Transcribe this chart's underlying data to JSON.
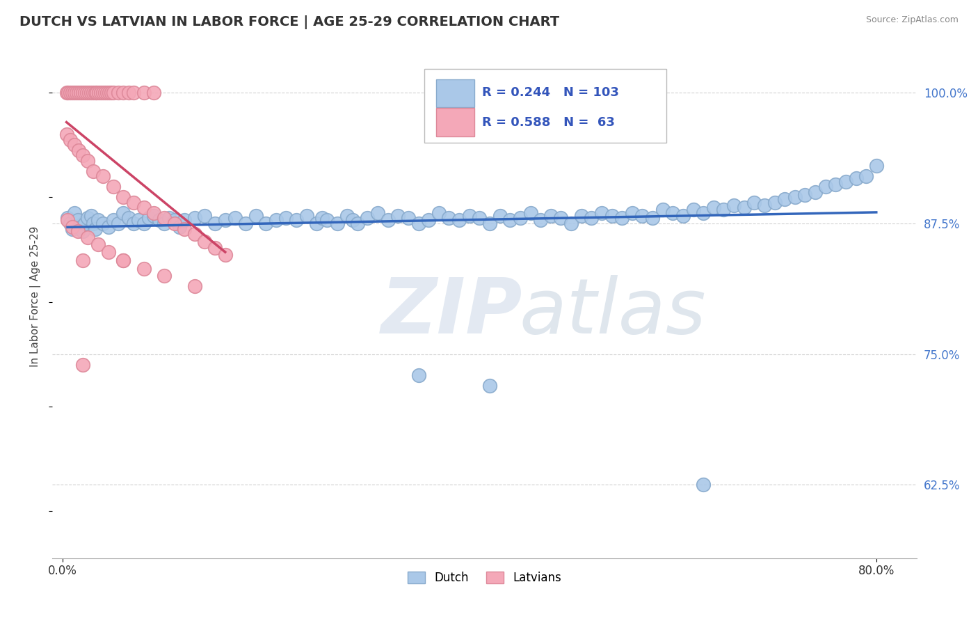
{
  "title": "DUTCH VS LATVIAN IN LABOR FORCE | AGE 25-29 CORRELATION CHART",
  "source": "Source: ZipAtlas.com",
  "ylabel": "In Labor Force | Age 25-29",
  "y_ticks": [
    0.625,
    0.75,
    0.875,
    1.0
  ],
  "y_tick_labels": [
    "62.5%",
    "75.0%",
    "87.5%",
    "100.0%"
  ],
  "xlim": [
    -0.01,
    0.84
  ],
  "ylim": [
    0.555,
    1.055
  ],
  "dutch_color": "#aac8e8",
  "latvian_color": "#f4a8b8",
  "dutch_edge_color": "#88aacc",
  "latvian_edge_color": "#dd8899",
  "trend_blue": "#3366bb",
  "trend_pink": "#cc4466",
  "R_dutch": 0.244,
  "N_dutch": 103,
  "R_latvian": 0.588,
  "N_latvian": 63,
  "watermark_zip": "ZIP",
  "watermark_atlas": "atlas",
  "legend_dutch": "Dutch",
  "legend_latvians": "Latvians",
  "dutch_x": [
    0.005,
    0.008,
    0.01,
    0.012,
    0.015,
    0.018,
    0.02,
    0.022,
    0.025,
    0.028,
    0.03,
    0.032,
    0.035,
    0.04,
    0.045,
    0.05,
    0.055,
    0.06,
    0.065,
    0.07,
    0.075,
    0.08,
    0.085,
    0.09,
    0.095,
    0.1,
    0.105,
    0.11,
    0.115,
    0.12,
    0.13,
    0.14,
    0.15,
    0.16,
    0.17,
    0.18,
    0.19,
    0.2,
    0.21,
    0.22,
    0.23,
    0.24,
    0.25,
    0.255,
    0.26,
    0.27,
    0.28,
    0.285,
    0.29,
    0.3,
    0.31,
    0.32,
    0.33,
    0.34,
    0.35,
    0.36,
    0.37,
    0.38,
    0.39,
    0.4,
    0.41,
    0.42,
    0.43,
    0.44,
    0.45,
    0.46,
    0.47,
    0.48,
    0.49,
    0.5,
    0.51,
    0.52,
    0.53,
    0.54,
    0.55,
    0.56,
    0.57,
    0.58,
    0.59,
    0.6,
    0.61,
    0.62,
    0.63,
    0.64,
    0.65,
    0.66,
    0.67,
    0.68,
    0.69,
    0.7,
    0.71,
    0.72,
    0.73,
    0.74,
    0.75,
    0.76,
    0.77,
    0.78,
    0.79,
    0.8,
    0.35,
    0.42,
    0.63
  ],
  "dutch_y": [
    0.88,
    0.875,
    0.87,
    0.885,
    0.878,
    0.872,
    0.868,
    0.875,
    0.88,
    0.882,
    0.875,
    0.87,
    0.878,
    0.875,
    0.872,
    0.878,
    0.875,
    0.885,
    0.88,
    0.875,
    0.878,
    0.875,
    0.88,
    0.882,
    0.878,
    0.875,
    0.88,
    0.878,
    0.872,
    0.878,
    0.88,
    0.882,
    0.875,
    0.878,
    0.88,
    0.875,
    0.882,
    0.875,
    0.878,
    0.88,
    0.878,
    0.882,
    0.875,
    0.88,
    0.878,
    0.875,
    0.882,
    0.878,
    0.875,
    0.88,
    0.885,
    0.878,
    0.882,
    0.88,
    0.875,
    0.878,
    0.885,
    0.88,
    0.878,
    0.882,
    0.88,
    0.875,
    0.882,
    0.878,
    0.88,
    0.885,
    0.878,
    0.882,
    0.88,
    0.875,
    0.882,
    0.88,
    0.885,
    0.882,
    0.88,
    0.885,
    0.882,
    0.88,
    0.888,
    0.885,
    0.882,
    0.888,
    0.885,
    0.89,
    0.888,
    0.892,
    0.89,
    0.895,
    0.892,
    0.895,
    0.898,
    0.9,
    0.902,
    0.905,
    0.91,
    0.912,
    0.915,
    0.918,
    0.92,
    0.93,
    0.73,
    0.72,
    0.625
  ],
  "latvian_x": [
    0.004,
    0.006,
    0.008,
    0.01,
    0.012,
    0.014,
    0.016,
    0.018,
    0.02,
    0.022,
    0.024,
    0.026,
    0.028,
    0.03,
    0.032,
    0.034,
    0.036,
    0.038,
    0.04,
    0.042,
    0.044,
    0.046,
    0.048,
    0.05,
    0.055,
    0.06,
    0.065,
    0.07,
    0.08,
    0.09,
    0.004,
    0.008,
    0.012,
    0.016,
    0.02,
    0.025,
    0.03,
    0.04,
    0.05,
    0.06,
    0.07,
    0.08,
    0.09,
    0.1,
    0.11,
    0.12,
    0.13,
    0.14,
    0.15,
    0.16,
    0.005,
    0.01,
    0.015,
    0.025,
    0.035,
    0.045,
    0.06,
    0.08,
    0.1,
    0.13,
    0.02,
    0.06,
    0.02
  ],
  "latvian_y": [
    1.0,
    1.0,
    1.0,
    1.0,
    1.0,
    1.0,
    1.0,
    1.0,
    1.0,
    1.0,
    1.0,
    1.0,
    1.0,
    1.0,
    1.0,
    1.0,
    1.0,
    1.0,
    1.0,
    1.0,
    1.0,
    1.0,
    1.0,
    1.0,
    1.0,
    1.0,
    1.0,
    1.0,
    1.0,
    1.0,
    0.96,
    0.955,
    0.95,
    0.945,
    0.94,
    0.935,
    0.925,
    0.92,
    0.91,
    0.9,
    0.895,
    0.89,
    0.885,
    0.88,
    0.875,
    0.87,
    0.865,
    0.858,
    0.852,
    0.845,
    0.878,
    0.872,
    0.868,
    0.862,
    0.855,
    0.848,
    0.84,
    0.832,
    0.825,
    0.815,
    0.84,
    0.84,
    0.74
  ]
}
